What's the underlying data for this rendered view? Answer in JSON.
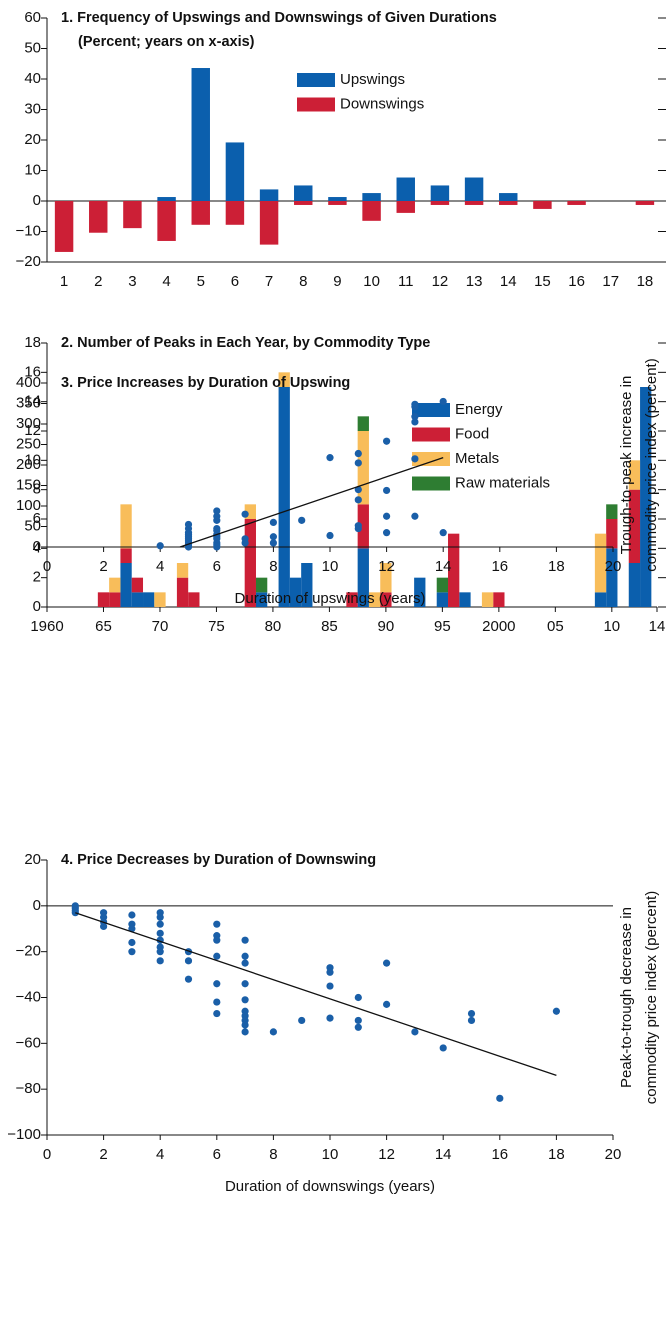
{
  "chart_data": [
    {
      "type": "bar",
      "title": "1. Frequency of Upswings and Downswings of Given Durations",
      "subtitle": "(Percent; years on x-axis)",
      "categories": [
        "1",
        "2",
        "3",
        "4",
        "5",
        "6",
        "7",
        "8",
        "9",
        "10",
        "11",
        "12",
        "13",
        "14",
        "15",
        "16",
        "17",
        "18"
      ],
      "series": [
        {
          "name": "Upswings",
          "color": "#0b5fad",
          "values": [
            0,
            0,
            0,
            1.3,
            43.6,
            19.2,
            3.8,
            5.1,
            1.3,
            2.6,
            7.7,
            5.1,
            7.7,
            2.6,
            0,
            0,
            0,
            0
          ]
        },
        {
          "name": "Downswings",
          "color": "#cc1f36",
          "values": [
            -16.7,
            -10.4,
            -8.9,
            -13.1,
            -7.8,
            -7.8,
            -14.3,
            -1.3,
            -1.3,
            -6.5,
            -3.9,
            -1.3,
            -1.3,
            -1.3,
            -2.6,
            -1.3,
            0,
            -1.3
          ]
        }
      ],
      "ylim": [
        -20,
        60
      ],
      "yticks": [
        {
          "value": -20,
          "label": "−20"
        },
        {
          "value": -10,
          "label": "−10"
        },
        0,
        10,
        20,
        30,
        40,
        50,
        60
      ]
    },
    {
      "type": "bar",
      "stacked": true,
      "title": "2. Number of Peaks in Each Year, by Commodity Type",
      "x": [
        1965,
        1966,
        1967,
        1968,
        1969,
        1970,
        1972,
        1973,
        1978,
        1979,
        1981,
        1982,
        1983,
        1987,
        1988,
        1989,
        1990,
        1993,
        1995,
        1996,
        1997,
        1999,
        2000,
        2009,
        2010,
        2012,
        2013
      ],
      "series": [
        {
          "name": "Energy",
          "color": "#0b5fad",
          "values": [
            0,
            0,
            3,
            1,
            1,
            0,
            0,
            0,
            0,
            1,
            15,
            2,
            3,
            0,
            4,
            0,
            0,
            2,
            1,
            0,
            1,
            0,
            0,
            1,
            4,
            3,
            15
          ]
        },
        {
          "name": "Food",
          "color": "#cc1f36",
          "values": [
            1,
            1,
            1,
            1,
            0,
            0,
            2,
            1,
            6,
            0,
            0,
            0,
            0,
            1,
            3,
            0,
            1,
            0,
            0,
            5,
            0,
            0,
            1,
            0,
            2,
            5,
            0
          ]
        },
        {
          "name": "Metals",
          "color": "#f8bd5a",
          "values": [
            0,
            1,
            3,
            0,
            0,
            1,
            1,
            0,
            1,
            0,
            1,
            0,
            0,
            0,
            5,
            1,
            2,
            0,
            0,
            0,
            0,
            1,
            0,
            4,
            0,
            2,
            0
          ]
        },
        {
          "name": "Raw materials",
          "color": "#2e7d32",
          "values": [
            0,
            0,
            0,
            0,
            0,
            0,
            0,
            0,
            0,
            1,
            0,
            0,
            0,
            0,
            1,
            0,
            0,
            0,
            1,
            0,
            0,
            0,
            0,
            0,
            1,
            0,
            0
          ]
        }
      ],
      "xlim": [
        1960,
        2014
      ],
      "xticks": [
        {
          "value": 1960,
          "label": "1960"
        },
        {
          "value": 1965,
          "label": "65"
        },
        {
          "value": 1970,
          "label": "70"
        },
        {
          "value": 1975,
          "label": "75"
        },
        {
          "value": 1980,
          "label": "80"
        },
        {
          "value": 1985,
          "label": "85"
        },
        {
          "value": 1990,
          "label": "90"
        },
        {
          "value": 1995,
          "label": "95"
        },
        {
          "value": 2000,
          "label": "2000"
        },
        {
          "value": 2005,
          "label": "05"
        },
        {
          "value": 2010,
          "label": "10"
        },
        {
          "value": 2014,
          "label": "14"
        }
      ],
      "ylim": [
        0,
        18
      ],
      "yticks": [
        0,
        2,
        4,
        6,
        8,
        10,
        12,
        14,
        16,
        18
      ]
    },
    {
      "type": "scatter",
      "title": "3. Price Increases by Duration of Upswing",
      "xlabel": "Duration of upswings (years)",
      "ylabel": [
        "Trough-to-peak increase in",
        "commodity price index (percent)"
      ],
      "color": "#1a5fa8",
      "x": [
        4,
        5,
        5,
        5,
        5,
        5,
        5,
        5,
        5,
        5,
        5,
        6,
        6,
        6,
        6,
        6,
        6,
        6,
        6,
        6,
        6,
        6,
        7,
        7,
        7,
        8,
        8,
        8,
        9,
        10,
        10,
        11,
        11,
        11,
        11,
        11,
        11,
        12,
        12,
        12,
        12,
        13,
        13,
        13,
        13,
        13,
        13,
        14,
        14
      ],
      "y": [
        3,
        0,
        5,
        10,
        15,
        20,
        25,
        30,
        35,
        45,
        55,
        0,
        5,
        10,
        20,
        25,
        30,
        40,
        45,
        65,
        75,
        88,
        10,
        20,
        80,
        10,
        25,
        60,
        65,
        28,
        218,
        45,
        52,
        115,
        140,
        205,
        228,
        35,
        75,
        138,
        258,
        75,
        215,
        305,
        318,
        342,
        348,
        35,
        355
      ],
      "fit_line": {
        "x": [
          4.7,
          14
        ],
        "y": [
          0,
          218
        ]
      },
      "xlim": [
        0,
        20
      ],
      "xticks": [
        0,
        2,
        4,
        6,
        8,
        10,
        12,
        14,
        16,
        18,
        20
      ],
      "ylim": [
        0,
        400
      ],
      "yticks": [
        0,
        50,
        100,
        150,
        200,
        250,
        300,
        350,
        400
      ]
    },
    {
      "type": "scatter",
      "title": "4. Price Decreases by Duration of Downswing",
      "xlabel": "Duration of downswings (years)",
      "ylabel": [
        "Peak-to-trough decrease in",
        "commodity price index (percent)"
      ],
      "color": "#1a5fa8",
      "x": [
        1,
        1,
        1,
        1,
        2,
        2,
        2,
        2,
        3,
        3,
        3,
        3,
        3,
        4,
        4,
        4,
        4,
        4,
        4,
        4,
        4,
        5,
        5,
        5,
        6,
        6,
        6,
        6,
        6,
        6,
        6,
        7,
        7,
        7,
        7,
        7,
        7,
        7,
        7,
        7,
        7,
        8,
        9,
        10,
        10,
        10,
        10,
        11,
        11,
        11,
        12,
        12,
        13,
        14,
        15,
        15,
        16,
        18
      ],
      "y": [
        0,
        -1,
        -2,
        -3,
        -3,
        -5,
        -7,
        -9,
        -4,
        -8,
        -10,
        -16,
        -20,
        -3,
        -5,
        -8,
        -12,
        -15,
        -18,
        -20,
        -24,
        -20,
        -24,
        -32,
        -8,
        -13,
        -15,
        -22,
        -34,
        -42,
        -47,
        -15,
        -22,
        -25,
        -34,
        -41,
        -46,
        -48,
        -50,
        -52,
        -55,
        -55,
        -50,
        -27,
        -29,
        -35,
        -49,
        -40,
        -50,
        -53,
        -25,
        -43,
        -55,
        -62,
        -47,
        -50,
        -84,
        -46
      ],
      "fit_line": {
        "x": [
          1,
          18
        ],
        "y": [
          -3,
          -74
        ]
      },
      "xlim": [
        0,
        20
      ],
      "xticks": [
        0,
        2,
        4,
        6,
        8,
        10,
        12,
        14,
        16,
        18,
        20
      ],
      "ylim": [
        -100,
        20
      ],
      "yticks": [
        {
          "value": -100,
          "label": "−100"
        },
        {
          "value": -80,
          "label": "−80"
        },
        {
          "value": -60,
          "label": "−60"
        },
        {
          "value": -40,
          "label": "−40"
        },
        {
          "value": -20,
          "label": "−20"
        },
        0,
        20
      ]
    }
  ]
}
